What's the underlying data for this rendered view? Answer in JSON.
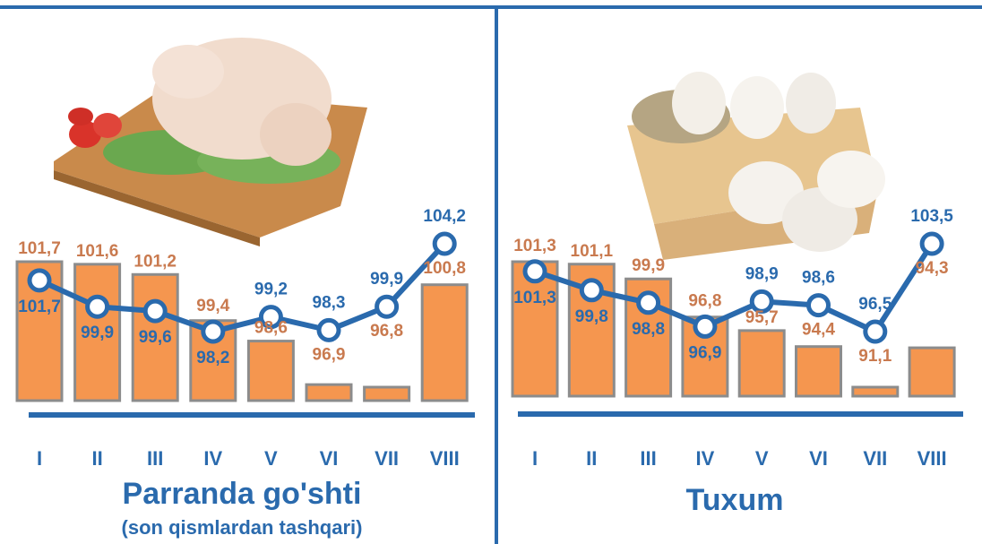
{
  "chart_data": [
    {
      "type": "bar-line",
      "title": "Parranda go'shti",
      "subtitle": "(son qismlardan tashqari)",
      "categories": [
        "I",
        "II",
        "III",
        "IV",
        "V",
        "VI",
        "VII",
        "VIII"
      ],
      "series": [
        {
          "type": "bar",
          "color": "#f5964f",
          "values": [
            101.7,
            101.6,
            101.2,
            99.4,
            98.6,
            96.9,
            96.8,
            100.8
          ],
          "value_labels": [
            "101,7",
            "101,6",
            "101,2",
            "99,4",
            "98,6",
            "96,9",
            "96,8",
            "100,8"
          ]
        },
        {
          "type": "line",
          "color": "#2a6aad",
          "values": [
            101.7,
            99.9,
            99.6,
            98.2,
            99.2,
            98.3,
            99.9,
            104.2
          ],
          "value_labels": [
            "101,7",
            "99,9",
            "99,6",
            "98,2",
            "99,2",
            "98,3",
            "99,9",
            "104,2"
          ]
        }
      ]
    },
    {
      "type": "bar-line",
      "title": "Tuxum",
      "categories": [
        "I",
        "II",
        "III",
        "IV",
        "V",
        "VI",
        "VII",
        "VIII"
      ],
      "series": [
        {
          "type": "bar",
          "color": "#f5964f",
          "values": [
            101.3,
            101.1,
            99.9,
            96.8,
            95.7,
            94.4,
            91.1,
            94.3
          ],
          "value_labels": [
            "101,3",
            "101,1",
            "99,9",
            "96,8",
            "95,7",
            "94,4",
            "91,1",
            "94,3"
          ]
        },
        {
          "type": "line",
          "color": "#2a6aad",
          "values": [
            101.3,
            99.8,
            98.8,
            96.9,
            98.9,
            98.6,
            96.5,
            103.5
          ],
          "value_labels": [
            "101,3",
            "99,8",
            "98,8",
            "96,9",
            "98,9",
            "98,6",
            "96,5",
            "103,5"
          ]
        }
      ]
    }
  ]
}
